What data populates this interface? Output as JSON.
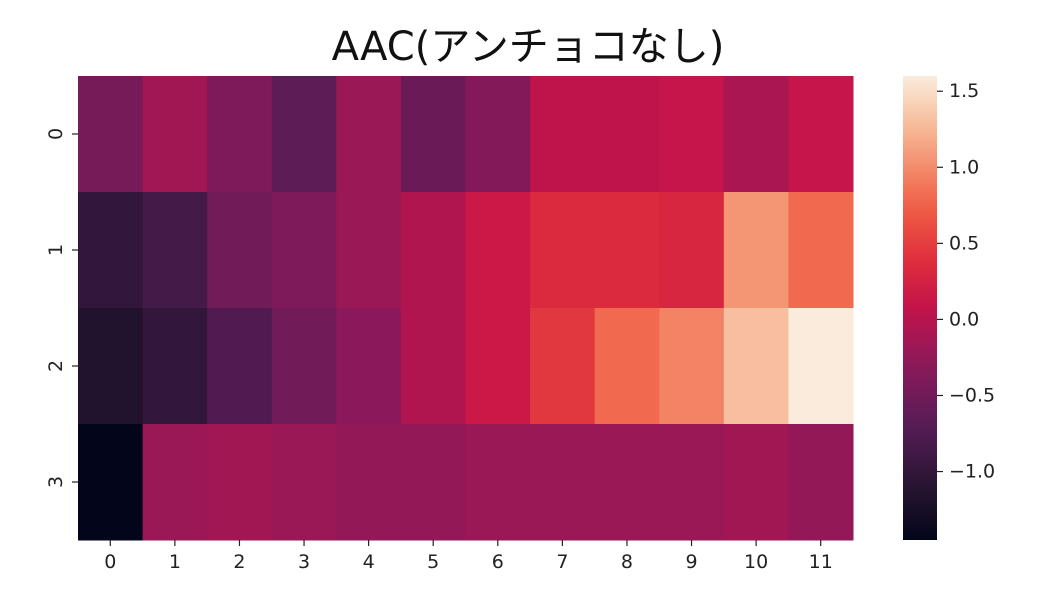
{
  "chart_data": {
    "type": "heatmap",
    "title": "AAC(アンチョコなし)",
    "x_categories": [
      "0",
      "1",
      "2",
      "3",
      "4",
      "5",
      "6",
      "7",
      "8",
      "9",
      "10",
      "11"
    ],
    "y_categories": [
      "0",
      "1",
      "2",
      "3"
    ],
    "values": [
      [
        -0.45,
        -0.15,
        -0.4,
        -0.65,
        -0.2,
        -0.55,
        -0.35,
        0.05,
        0.05,
        0.1,
        -0.1,
        0.1
      ],
      [
        -1.0,
        -0.85,
        -0.5,
        -0.4,
        -0.2,
        -0.05,
        0.15,
        0.35,
        0.35,
        0.3,
        1.05,
        0.8
      ],
      [
        -1.15,
        -1.0,
        -0.75,
        -0.5,
        -0.3,
        -0.05,
        0.15,
        0.45,
        0.8,
        0.95,
        1.3,
        1.6
      ],
      [
        -1.45,
        -0.2,
        -0.15,
        -0.2,
        -0.25,
        -0.25,
        -0.2,
        -0.2,
        -0.2,
        -0.2,
        -0.15,
        -0.25
      ]
    ],
    "colorbar": {
      "vmin": -1.45,
      "vmax": 1.6,
      "ticks": [
        -1.0,
        -0.5,
        0.0,
        0.5,
        1.0,
        1.5
      ],
      "tick_labels": [
        "−1.0",
        "−0.5",
        "0.0",
        "0.5",
        "1.0",
        "1.5"
      ],
      "colormap": "rocket"
    }
  }
}
